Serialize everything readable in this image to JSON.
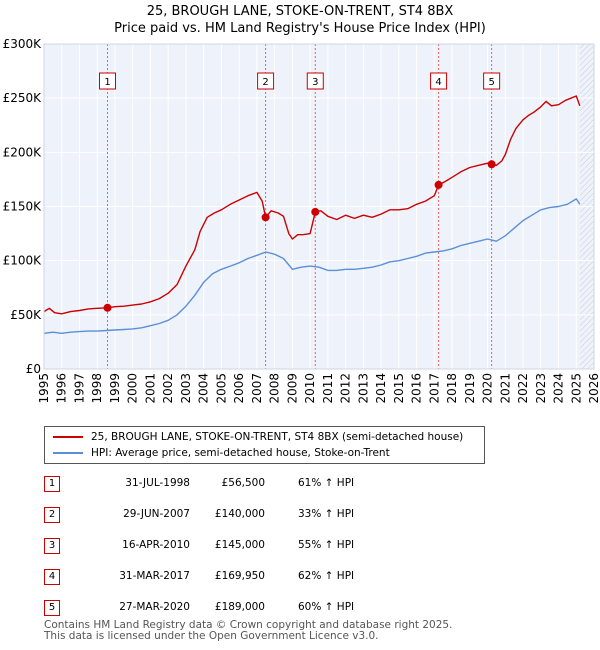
{
  "chart_data": {
    "type": "line",
    "title": "25, BROUGH LANE, STOKE-ON-TRENT, ST4 8BX",
    "subtitle": "Price paid vs. HM Land Registry's House Price Index (HPI)",
    "xlim": [
      1995,
      2026
    ],
    "ylim": [
      0,
      300000
    ],
    "x_ticks": [
      1995,
      1996,
      1997,
      1998,
      1999,
      2000,
      2001,
      2002,
      2003,
      2004,
      2005,
      2006,
      2007,
      2008,
      2009,
      2010,
      2011,
      2012,
      2013,
      2014,
      2015,
      2016,
      2017,
      2018,
      2019,
      2020,
      2021,
      2022,
      2023,
      2024,
      2025,
      2026
    ],
    "y_ticks": [
      {
        "value": 0,
        "label": "£0"
      },
      {
        "value": 50000,
        "label": "£50K"
      },
      {
        "value": 100000,
        "label": "£100K"
      },
      {
        "value": 150000,
        "label": "£150K"
      },
      {
        "value": 200000,
        "label": "£200K"
      },
      {
        "value": 250000,
        "label": "£250K"
      },
      {
        "value": 300000,
        "label": "£300K"
      }
    ],
    "grid": true,
    "forecast_from": 2025.2,
    "series": [
      {
        "name": "25, BROUGH LANE, STOKE-ON-TRENT, ST4 8BX (semi-detached house)",
        "color": "#cc0000",
        "x": [
          1995.0,
          1995.3,
          1995.6,
          1996.0,
          1996.5,
          1997.0,
          1997.5,
          1998.0,
          1998.58,
          1999.0,
          1999.5,
          2000.0,
          2000.5,
          2001.0,
          2001.5,
          2002.0,
          2002.5,
          2003.0,
          2003.5,
          2003.8,
          2004.2,
          2004.6,
          2005.0,
          2005.5,
          2006.0,
          2006.5,
          2007.0,
          2007.3,
          2007.49,
          2007.8,
          2008.2,
          2008.5,
          2008.8,
          2009.0,
          2009.3,
          2009.6,
          2010.0,
          2010.29,
          2010.6,
          2011.0,
          2011.5,
          2012.0,
          2012.5,
          2013.0,
          2013.5,
          2014.0,
          2014.5,
          2015.0,
          2015.5,
          2016.0,
          2016.5,
          2017.0,
          2017.24,
          2017.6,
          2018.0,
          2018.5,
          2019.0,
          2019.5,
          2020.0,
          2020.23,
          2020.5,
          2020.8,
          2021.0,
          2021.3,
          2021.6,
          2022.0,
          2022.3,
          2022.6,
          2023.0,
          2023.3,
          2023.6,
          2024.0,
          2024.4,
          2024.7,
          2025.0,
          2025.2
        ],
        "y": [
          53000,
          56000,
          52000,
          51000,
          53000,
          54000,
          55500,
          56000,
          56500,
          57500,
          58000,
          59000,
          60000,
          62000,
          65000,
          70000,
          78000,
          95000,
          110000,
          127000,
          140000,
          144000,
          147000,
          152000,
          156000,
          160000,
          163000,
          155000,
          140000,
          146000,
          144000,
          141000,
          125000,
          120000,
          124000,
          124000,
          125000,
          145000,
          146000,
          141000,
          138000,
          142000,
          139000,
          142000,
          140000,
          143000,
          147000,
          147000,
          148000,
          152000,
          155000,
          160000,
          169950,
          173000,
          177000,
          182000,
          186000,
          188000,
          190000,
          189000,
          188000,
          192000,
          198000,
          212000,
          222000,
          230000,
          234000,
          237000,
          242000,
          247000,
          243000,
          244000,
          248000,
          250000,
          252000,
          243000
        ]
      },
      {
        "name": "HPI: Average price, semi-detached house, Stoke-on-Trent",
        "color": "#5b8fd6",
        "x": [
          1995.0,
          1995.5,
          1996.0,
          1996.5,
          1997.0,
          1997.5,
          1998.0,
          1998.5,
          1999.0,
          1999.5,
          2000.0,
          2000.5,
          2001.0,
          2001.5,
          2002.0,
          2002.5,
          2003.0,
          2003.5,
          2004.0,
          2004.5,
          2005.0,
          2005.5,
          2006.0,
          2006.5,
          2007.0,
          2007.5,
          2008.0,
          2008.5,
          2009.0,
          2009.5,
          2010.0,
          2010.5,
          2011.0,
          2011.5,
          2012.0,
          2012.5,
          2013.0,
          2013.5,
          2014.0,
          2014.5,
          2015.0,
          2015.5,
          2016.0,
          2016.5,
          2017.0,
          2017.5,
          2018.0,
          2018.5,
          2019.0,
          2019.5,
          2020.0,
          2020.5,
          2021.0,
          2021.5,
          2022.0,
          2022.5,
          2023.0,
          2023.5,
          2024.0,
          2024.5,
          2025.0,
          2025.2
        ],
        "y": [
          33000,
          34000,
          33000,
          34000,
          34500,
          35000,
          35000,
          35500,
          36000,
          36500,
          37000,
          38000,
          40000,
          42000,
          45000,
          50000,
          58000,
          68000,
          80000,
          88000,
          92000,
          95000,
          98000,
          102000,
          105000,
          108000,
          106000,
          102000,
          92000,
          94000,
          95000,
          94000,
          91000,
          91000,
          92000,
          92000,
          93000,
          94000,
          96000,
          99000,
          100000,
          102000,
          104000,
          107000,
          108000,
          109000,
          111000,
          114000,
          116000,
          118000,
          120000,
          118000,
          123000,
          130000,
          137000,
          142000,
          147000,
          149000,
          150000,
          152000,
          157000,
          152000
        ]
      }
    ],
    "markers": [
      {
        "label": "1",
        "x": 1998.58,
        "y": 56500
      },
      {
        "label": "2",
        "x": 2007.49,
        "y": 140000
      },
      {
        "label": "3",
        "x": 2010.29,
        "y": 145000
      },
      {
        "label": "4",
        "x": 2017.24,
        "y": 169950
      },
      {
        "label": "5",
        "x": 2020.23,
        "y": 189000
      }
    ]
  },
  "legend": {
    "property_label": "25, BROUGH LANE, STOKE-ON-TRENT, ST4 8BX (semi-detached house)",
    "hpi_label": "HPI: Average price, semi-detached house, Stoke-on-Trent"
  },
  "sales": [
    {
      "num": "1",
      "date": "31-JUL-1998",
      "price": "£56,500",
      "hpi": "61% ↑ HPI"
    },
    {
      "num": "2",
      "date": "29-JUN-2007",
      "price": "£140,000",
      "hpi": "33% ↑ HPI"
    },
    {
      "num": "3",
      "date": "16-APR-2010",
      "price": "£145,000",
      "hpi": "55% ↑ HPI"
    },
    {
      "num": "4",
      "date": "31-MAR-2017",
      "price": "£169,950",
      "hpi": "62% ↑ HPI"
    },
    {
      "num": "5",
      "date": "27-MAR-2020",
      "price": "£189,000",
      "hpi": "60% ↑ HPI"
    }
  ],
  "footer": {
    "line1": "Contains HM Land Registry data © Crown copyright and database right 2025.",
    "line2": "This data is licensed under the Open Government Licence v3.0."
  }
}
